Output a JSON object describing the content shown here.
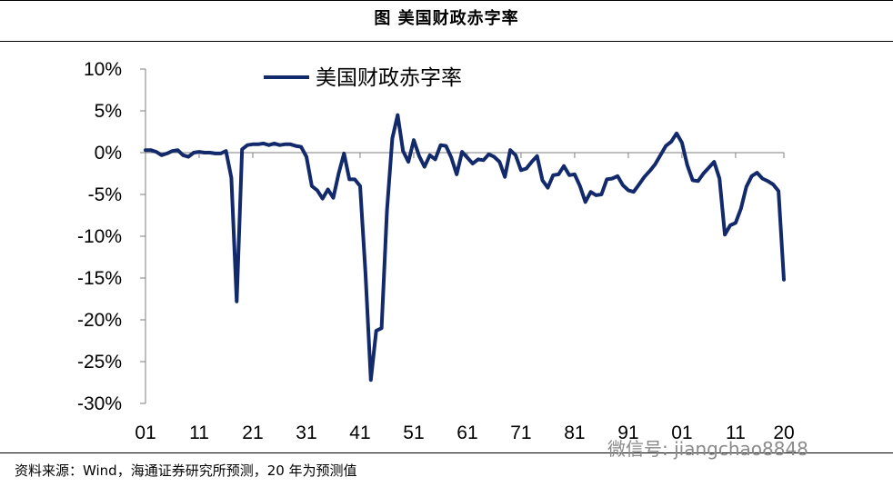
{
  "figure_title": "图 美国财政赤字率",
  "source": "资料来源：Wind，海通证券研究所预测，20 年为预测值",
  "watermark": "微信号: jiangchao8848",
  "colors": {
    "line": "#12296b",
    "axis": "#7f7f7f",
    "text": "#000000"
  },
  "chart_data": {
    "type": "line",
    "title": "",
    "xlabel": "",
    "ylabel": "",
    "ylim": [
      -30,
      10
    ],
    "xlim": [
      1901,
      2020
    ],
    "x_ticks": [
      1901,
      1911,
      1921,
      1931,
      1941,
      1951,
      1961,
      1971,
      1981,
      1991,
      2001,
      2011,
      2020
    ],
    "x_tick_labels": [
      "01",
      "11",
      "21",
      "31",
      "41",
      "51",
      "61",
      "71",
      "81",
      "91",
      "01",
      "11",
      "20"
    ],
    "y_ticks": [
      10,
      5,
      0,
      -5,
      -10,
      -15,
      -20,
      -25,
      -30
    ],
    "y_tick_labels": [
      "10%",
      "5%",
      "0%",
      "-5%",
      "-10%",
      "-15%",
      "-20%",
      "-25%",
      "-30%"
    ],
    "legend": {
      "position": "top-left"
    },
    "grid": false,
    "series": [
      {
        "name": "美国财政赤字率",
        "x": [
          1901,
          1902,
          1903,
          1904,
          1905,
          1906,
          1907,
          1908,
          1909,
          1910,
          1911,
          1912,
          1913,
          1914,
          1915,
          1916,
          1917,
          1918,
          1919,
          1920,
          1921,
          1922,
          1923,
          1924,
          1925,
          1926,
          1927,
          1928,
          1929,
          1930,
          1931,
          1932,
          1933,
          1934,
          1935,
          1936,
          1937,
          1938,
          1939,
          1940,
          1941,
          1942,
          1943,
          1944,
          1945,
          1946,
          1947,
          1948,
          1949,
          1950,
          1951,
          1952,
          1953,
          1954,
          1955,
          1956,
          1957,
          1958,
          1959,
          1960,
          1961,
          1962,
          1963,
          1964,
          1965,
          1966,
          1967,
          1968,
          1969,
          1970,
          1971,
          1972,
          1973,
          1974,
          1975,
          1976,
          1977,
          1978,
          1979,
          1980,
          1981,
          1982,
          1983,
          1984,
          1985,
          1986,
          1987,
          1988,
          1989,
          1990,
          1991,
          1992,
          1993,
          1994,
          1995,
          1996,
          1997,
          1998,
          1999,
          2000,
          2001,
          2002,
          2003,
          2004,
          2005,
          2006,
          2007,
          2008,
          2009,
          2010,
          2011,
          2012,
          2013,
          2014,
          2015,
          2016,
          2017,
          2018,
          2019,
          2020
        ],
        "values": [
          0.3,
          0.3,
          0.1,
          -0.3,
          -0.1,
          0.2,
          0.3,
          -0.3,
          -0.5,
          0.0,
          0.1,
          0.0,
          0.0,
          -0.1,
          -0.1,
          0.2,
          -3.0,
          -17.8,
          0.4,
          0.9,
          1.0,
          1.0,
          1.1,
          0.9,
          1.1,
          0.9,
          1.0,
          1.0,
          0.8,
          0.7,
          -0.5,
          -4.0,
          -4.5,
          -5.5,
          -4.4,
          -5.4,
          -2.5,
          -0.1,
          -3.2,
          -3.2,
          -4.0,
          -14.4,
          -27.2,
          -21.3,
          -21.0,
          -7.0,
          1.7,
          4.5,
          0.2,
          -1.1,
          1.5,
          -0.4,
          -1.7,
          -0.3,
          -0.8,
          0.9,
          0.8,
          -0.6,
          -2.6,
          0.1,
          -0.6,
          -1.3,
          -0.8,
          -0.9,
          -0.2,
          -0.5,
          -1.1,
          -2.9,
          0.3,
          -0.3,
          -2.1,
          -1.9,
          -1.1,
          -0.4,
          -3.3,
          -4.2,
          -2.7,
          -2.6,
          -1.6,
          -2.7,
          -2.6,
          -4.0,
          -5.9,
          -4.7,
          -5.1,
          -5.0,
          -3.2,
          -3.1,
          -2.8,
          -3.9,
          -4.5,
          -4.7,
          -3.8,
          -2.9,
          -2.2,
          -1.4,
          -0.3,
          0.8,
          1.3,
          2.3,
          1.2,
          -1.5,
          -3.3,
          -3.4,
          -2.5,
          -1.8,
          -1.1,
          -3.1,
          -9.8,
          -8.7,
          -8.4,
          -6.7,
          -4.1,
          -2.8,
          -2.4,
          -3.1,
          -3.4,
          -3.8,
          -4.6,
          -15.2
        ]
      }
    ]
  }
}
